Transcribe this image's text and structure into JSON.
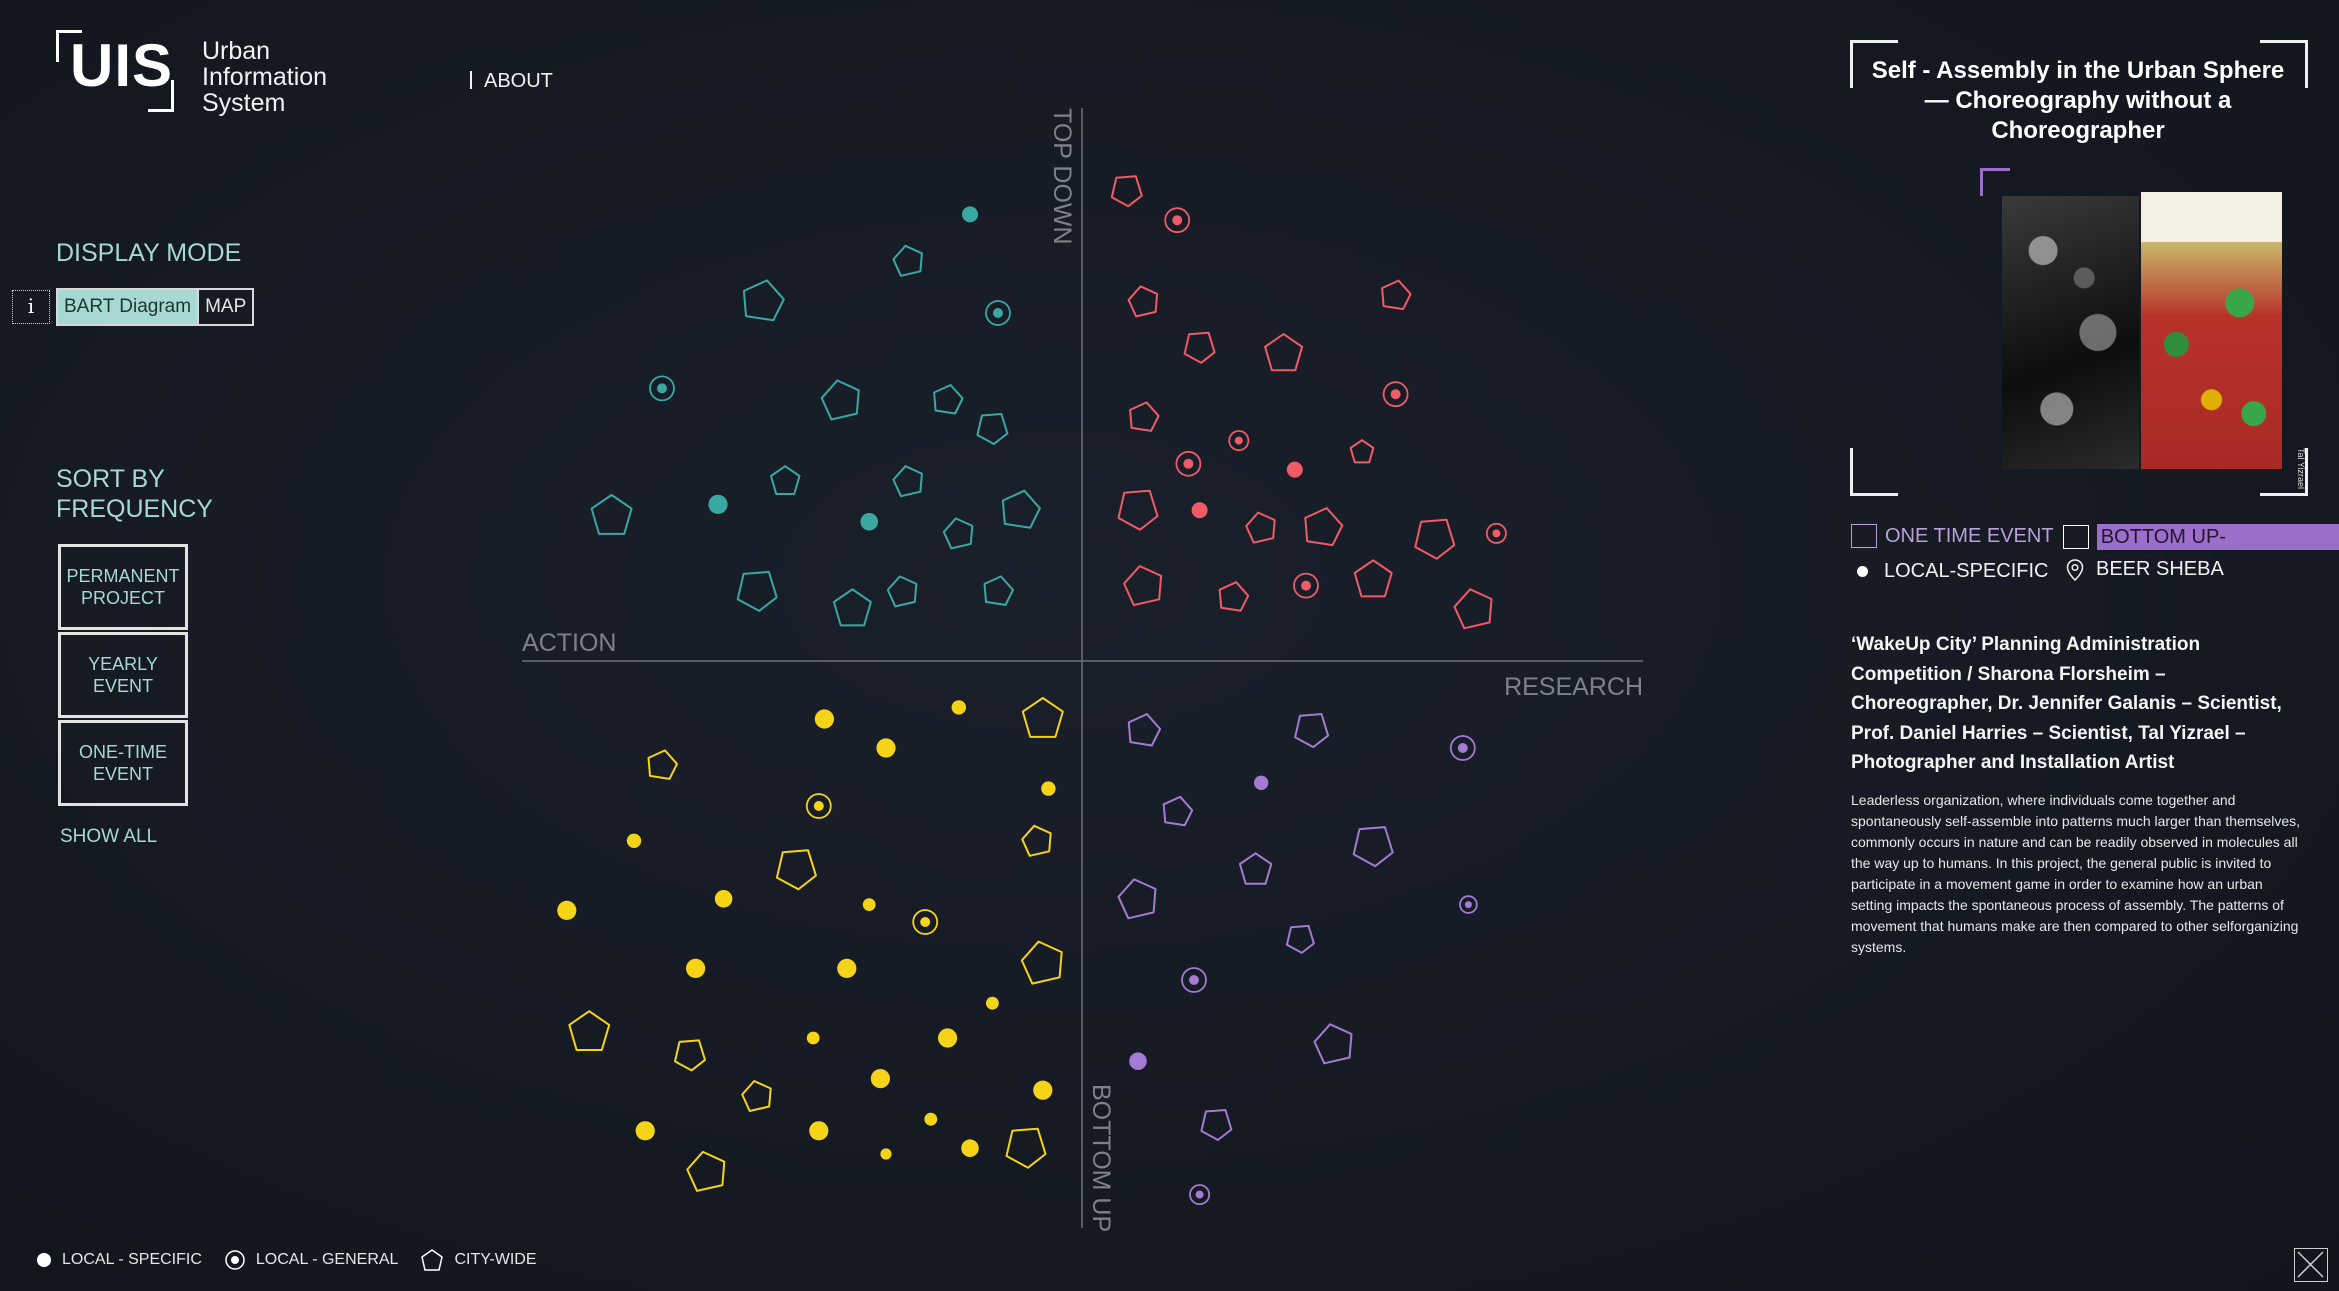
{
  "app": {
    "logo_letters": "UIS",
    "logo_text_lines": [
      "Urban",
      "Information",
      "System"
    ],
    "about_label": "ABOUT"
  },
  "display_mode": {
    "title": "DISPLAY MODE",
    "info_label": "i",
    "options": [
      "BART Diagram",
      "MAP"
    ],
    "selected": "BART Diagram"
  },
  "sort": {
    "title_lines": [
      "SORT BY",
      "FREQUENCY"
    ],
    "buttons": [
      {
        "line1": "PERMANENT",
        "line2": "PROJECT"
      },
      {
        "line1": "YEARLY",
        "line2": "EVENT"
      },
      {
        "line1": "ONE-TIME",
        "line2": "EVENT"
      }
    ],
    "show_all": "SHOW ALL"
  },
  "axes": {
    "top": "TOP DOWN",
    "bottom": "BOTTOM UP",
    "left": "ACTION",
    "right": "RESEARCH"
  },
  "colors": {
    "top_down_action": "#3aa8a2",
    "top_down_research": "#ef5b67",
    "bottom_up_action": "#f5d417",
    "bottom_up_research": "#a47bd3",
    "accent": "#a8d8d3",
    "axis": "#6c717a"
  },
  "chart_data": {
    "type": "scatter",
    "x_axis": {
      "negative": "ACTION",
      "positive": "RESEARCH",
      "range": [
        -100,
        100
      ]
    },
    "y_axis": {
      "negative": "BOTTOM UP",
      "positive": "TOP DOWN",
      "range": [
        -100,
        100
      ]
    },
    "marker_kinds": {
      "dot": "LOCAL - SPECIFIC",
      "ring": "LOCAL - GENERAL",
      "poly": "CITY-WIDE"
    },
    "quadrants": [
      {
        "name": "top-down-action",
        "color": "#3aa8a2",
        "points": [
          {
            "x": -20,
            "y": 77,
            "k": "dot",
            "s": 1
          },
          {
            "x": -31,
            "y": 69,
            "k": "poly",
            "s": 1
          },
          {
            "x": -57,
            "y": 62,
            "k": "poly",
            "s": 1.4
          },
          {
            "x": -15,
            "y": 60,
            "k": "ring",
            "s": 1
          },
          {
            "x": -75,
            "y": 47,
            "k": "ring",
            "s": 1
          },
          {
            "x": -43,
            "y": 45,
            "k": "poly",
            "s": 1.3
          },
          {
            "x": -24,
            "y": 45,
            "k": "poly",
            "s": 1
          },
          {
            "x": -16,
            "y": 40,
            "k": "poly",
            "s": 1
          },
          {
            "x": -53,
            "y": 31,
            "k": "poly",
            "s": 1
          },
          {
            "x": -31,
            "y": 31,
            "k": "poly",
            "s": 1
          },
          {
            "x": -65,
            "y": 27,
            "k": "dot",
            "s": 1.2
          },
          {
            "x": -38,
            "y": 24,
            "k": "dot",
            "s": 1.1
          },
          {
            "x": -84,
            "y": 25,
            "k": "poly",
            "s": 1.4
          },
          {
            "x": -22,
            "y": 22,
            "k": "poly",
            "s": 1
          },
          {
            "x": -11,
            "y": 26,
            "k": "poly",
            "s": 1.3
          },
          {
            "x": -58,
            "y": 12,
            "k": "poly",
            "s": 1.3
          },
          {
            "x": -41,
            "y": 9,
            "k": "poly",
            "s": 1.3
          },
          {
            "x": -32,
            "y": 12,
            "k": "poly",
            "s": 1
          },
          {
            "x": -15,
            "y": 12,
            "k": "poly",
            "s": 1
          }
        ]
      },
      {
        "name": "top-down-research",
        "color": "#ef5b67",
        "points": [
          {
            "x": 8,
            "y": 81,
            "k": "poly",
            "s": 1
          },
          {
            "x": 17,
            "y": 76,
            "k": "ring",
            "s": 1
          },
          {
            "x": 11,
            "y": 62,
            "k": "poly",
            "s": 1
          },
          {
            "x": 56,
            "y": 63,
            "k": "poly",
            "s": 1
          },
          {
            "x": 21,
            "y": 54,
            "k": "poly",
            "s": 1
          },
          {
            "x": 36,
            "y": 53,
            "k": "poly",
            "s": 1.3
          },
          {
            "x": 56,
            "y": 46,
            "k": "ring",
            "s": 1
          },
          {
            "x": 11,
            "y": 42,
            "k": "poly",
            "s": 1
          },
          {
            "x": 28,
            "y": 38,
            "k": "ring",
            "s": 0.8
          },
          {
            "x": 50,
            "y": 36,
            "k": "poly",
            "s": 0.8
          },
          {
            "x": 19,
            "y": 34,
            "k": "ring",
            "s": 1
          },
          {
            "x": 38,
            "y": 33,
            "k": "dot",
            "s": 1
          },
          {
            "x": 10,
            "y": 26,
            "k": "poly",
            "s": 1.3
          },
          {
            "x": 21,
            "y": 26,
            "k": "dot",
            "s": 1
          },
          {
            "x": 32,
            "y": 23,
            "k": "poly",
            "s": 1
          },
          {
            "x": 43,
            "y": 23,
            "k": "poly",
            "s": 1.3
          },
          {
            "x": 63,
            "y": 21,
            "k": "poly",
            "s": 1.3
          },
          {
            "x": 74,
            "y": 22,
            "k": "ring",
            "s": 0.8
          },
          {
            "x": 11,
            "y": 13,
            "k": "poly",
            "s": 1.3
          },
          {
            "x": 27,
            "y": 11,
            "k": "poly",
            "s": 1
          },
          {
            "x": 40,
            "y": 13,
            "k": "ring",
            "s": 1
          },
          {
            "x": 52,
            "y": 14,
            "k": "poly",
            "s": 1.3
          },
          {
            "x": 70,
            "y": 9,
            "k": "poly",
            "s": 1.3
          }
        ]
      },
      {
        "name": "bottom-up-action",
        "color": "#f5d417",
        "points": [
          {
            "x": -22,
            "y": -8,
            "k": "dot",
            "s": 0.9
          },
          {
            "x": -46,
            "y": -10,
            "k": "dot",
            "s": 1.2
          },
          {
            "x": -7,
            "y": -10,
            "k": "poly",
            "s": 1.4
          },
          {
            "x": -35,
            "y": -15,
            "k": "dot",
            "s": 1.2
          },
          {
            "x": -75,
            "y": -18,
            "k": "poly",
            "s": 1
          },
          {
            "x": -6,
            "y": -22,
            "k": "dot",
            "s": 0.9
          },
          {
            "x": -47,
            "y": -25,
            "k": "ring",
            "s": 1
          },
          {
            "x": -8,
            "y": -31,
            "k": "poly",
            "s": 1
          },
          {
            "x": -80,
            "y": -31,
            "k": "dot",
            "s": 0.9
          },
          {
            "x": -51,
            "y": -36,
            "k": "poly",
            "s": 1.3
          },
          {
            "x": -64,
            "y": -41,
            "k": "dot",
            "s": 1.1
          },
          {
            "x": -38,
            "y": -42,
            "k": "dot",
            "s": 0.8
          },
          {
            "x": -28,
            "y": -45,
            "k": "ring",
            "s": 1
          },
          {
            "x": -92,
            "y": -43,
            "k": "dot",
            "s": 1.2
          },
          {
            "x": -42,
            "y": -53,
            "k": "dot",
            "s": 1.2
          },
          {
            "x": -7,
            "y": -52,
            "k": "poly",
            "s": 1.4
          },
          {
            "x": -69,
            "y": -53,
            "k": "dot",
            "s": 1.2
          },
          {
            "x": -16,
            "y": -59,
            "k": "dot",
            "s": 0.8
          },
          {
            "x": -88,
            "y": -64,
            "k": "poly",
            "s": 1.4
          },
          {
            "x": -48,
            "y": -65,
            "k": "dot",
            "s": 0.8
          },
          {
            "x": -24,
            "y": -65,
            "k": "dot",
            "s": 1.2
          },
          {
            "x": -70,
            "y": -68,
            "k": "poly",
            "s": 1
          },
          {
            "x": -36,
            "y": -72,
            "k": "dot",
            "s": 1.2
          },
          {
            "x": -58,
            "y": -75,
            "k": "poly",
            "s": 1
          },
          {
            "x": -7,
            "y": -74,
            "k": "dot",
            "s": 1.2
          },
          {
            "x": -27,
            "y": -79,
            "k": "dot",
            "s": 0.8
          },
          {
            "x": -78,
            "y": -81,
            "k": "dot",
            "s": 1.2
          },
          {
            "x": -47,
            "y": -81,
            "k": "dot",
            "s": 1.2
          },
          {
            "x": -20,
            "y": -84,
            "k": "dot",
            "s": 1.1
          },
          {
            "x": -10,
            "y": -84,
            "k": "poly",
            "s": 1.3
          },
          {
            "x": -35,
            "y": -85,
            "k": "dot",
            "s": 0.7
          },
          {
            "x": -67,
            "y": -88,
            "k": "poly",
            "s": 1.3
          }
        ]
      },
      {
        "name": "bottom-up-research",
        "color": "#a47bd3",
        "points": [
          {
            "x": 11,
            "y": -12,
            "k": "poly",
            "s": 1.1
          },
          {
            "x": 41,
            "y": -12,
            "k": "poly",
            "s": 1.1
          },
          {
            "x": 68,
            "y": -15,
            "k": "ring",
            "s": 1
          },
          {
            "x": 32,
            "y": -21,
            "k": "dot",
            "s": 0.9
          },
          {
            "x": 17,
            "y": -26,
            "k": "poly",
            "s": 1
          },
          {
            "x": 52,
            "y": -32,
            "k": "poly",
            "s": 1.3
          },
          {
            "x": 31,
            "y": -36,
            "k": "poly",
            "s": 1.1
          },
          {
            "x": 10,
            "y": -41,
            "k": "poly",
            "s": 1.3
          },
          {
            "x": 69,
            "y": -42,
            "k": "ring",
            "s": 0.7
          },
          {
            "x": 39,
            "y": -48,
            "k": "poly",
            "s": 0.9
          },
          {
            "x": 20,
            "y": -55,
            "k": "ring",
            "s": 1
          },
          {
            "x": 45,
            "y": -66,
            "k": "poly",
            "s": 1.3
          },
          {
            "x": 10,
            "y": -69,
            "k": "dot",
            "s": 1.1
          },
          {
            "x": 24,
            "y": -80,
            "k": "poly",
            "s": 1
          },
          {
            "x": 21,
            "y": -92,
            "k": "ring",
            "s": 0.8
          }
        ]
      }
    ]
  },
  "detail": {
    "title": "Self - Assembly in the Urban Sphere — Choreography without a Choreographer",
    "photo_credit": "Tal Yizrael",
    "tags": {
      "frequency": "ONE TIME EVENT",
      "category": "BOTTOM UP-RESEARCH",
      "scale": "LOCAL-SPECIFIC",
      "location": "BEER SHEBA"
    },
    "credits": "‘WakeUp City’ Planning Administration Competition / Sharona Florsheim – Choreographer, Dr. Jennifer Galanis – Scientist, Prof. Daniel Harries – Scientist, Tal Yizrael – Photographer and Installation Artist",
    "description": "Leaderless organization, where individuals come together and spontaneously self-assemble into patterns much larger than themselves, commonly occurs in nature and can be readily observed in molecules all the way up to humans. In this project, the general public is invited to participate in a movement game in order to examine how an urban setting impacts the spontaneous process of assembly. The patterns of movement that humans make are then compared to other selforganizing systems."
  },
  "legend": {
    "items": [
      "LOCAL - SPECIFIC",
      "LOCAL - GENERAL",
      "CITY-WIDE"
    ]
  }
}
